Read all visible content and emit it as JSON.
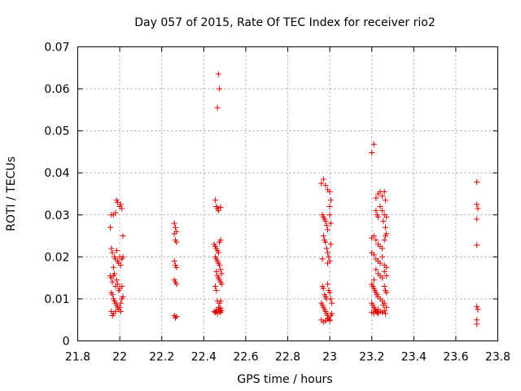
{
  "chart_data": {
    "type": "scatter",
    "title": "Day 057 of 2015, Rate Of TEC Index for receiver rio2",
    "xlabel": "GPS time / hours",
    "ylabel": "ROTI / TECUs",
    "xlim": [
      21.8,
      23.8
    ],
    "ylim": [
      0,
      0.07
    ],
    "xticks": [
      21.8,
      22,
      22.2,
      22.4,
      22.6,
      22.8,
      23,
      23.2,
      23.4,
      23.6,
      23.8
    ],
    "xtick_labels": [
      "21.8",
      "22",
      "22.2",
      "22.4",
      "22.6",
      "22.8",
      "23",
      "23.2",
      "23.4",
      "23.6",
      "23.8"
    ],
    "yticks": [
      0,
      0.01,
      0.02,
      0.03,
      0.04,
      0.05,
      0.06,
      0.07
    ],
    "ytick_labels": [
      "0",
      "0.01",
      "0.02",
      "0.03",
      "0.04",
      "0.05",
      "0.06",
      "0.07"
    ],
    "grid": true,
    "marker": "plus",
    "marker_color": "#e00000",
    "series": [
      {
        "name": "ROTI",
        "points": [
          [
            21.955,
            0.027
          ],
          [
            21.96,
            0.03
          ],
          [
            21.97,
            0.03
          ],
          [
            21.98,
            0.0305
          ],
          [
            21.985,
            0.0335
          ],
          [
            21.99,
            0.033
          ],
          [
            22.0,
            0.032
          ],
          [
            22.005,
            0.0325
          ],
          [
            22.01,
            0.0315
          ],
          [
            22.015,
            0.025
          ],
          [
            21.96,
            0.022
          ],
          [
            21.965,
            0.021
          ],
          [
            21.975,
            0.02
          ],
          [
            21.98,
            0.0195
          ],
          [
            21.985,
            0.0215
          ],
          [
            21.99,
            0.019
          ],
          [
            21.995,
            0.0185
          ],
          [
            22.0,
            0.02
          ],
          [
            22.005,
            0.018
          ],
          [
            22.01,
            0.0195
          ],
          [
            22.015,
            0.02
          ],
          [
            21.97,
            0.0175
          ],
          [
            21.975,
            0.016
          ],
          [
            21.955,
            0.0155
          ],
          [
            21.96,
            0.015
          ],
          [
            21.965,
            0.014
          ],
          [
            21.97,
            0.0155
          ],
          [
            21.98,
            0.013
          ],
          [
            21.985,
            0.0145
          ],
          [
            21.99,
            0.0135
          ],
          [
            21.995,
            0.012
          ],
          [
            22.0,
            0.0125
          ],
          [
            22.01,
            0.013
          ],
          [
            21.96,
            0.0115
          ],
          [
            21.965,
            0.011
          ],
          [
            21.97,
            0.01
          ],
          [
            21.975,
            0.0095
          ],
          [
            21.98,
            0.009
          ],
          [
            21.985,
            0.0085
          ],
          [
            21.99,
            0.008
          ],
          [
            21.995,
            0.0075
          ],
          [
            22.0,
            0.008
          ],
          [
            22.005,
            0.009
          ],
          [
            22.01,
            0.01
          ],
          [
            22.015,
            0.0105
          ],
          [
            21.96,
            0.007
          ],
          [
            21.965,
            0.006
          ],
          [
            21.97,
            0.0065
          ],
          [
            21.98,
            0.007
          ],
          [
            22.005,
            0.007
          ],
          [
            22.26,
            0.028
          ],
          [
            22.265,
            0.027
          ],
          [
            22.27,
            0.026
          ],
          [
            22.26,
            0.0255
          ],
          [
            22.265,
            0.024
          ],
          [
            22.27,
            0.0235
          ],
          [
            22.26,
            0.019
          ],
          [
            22.265,
            0.018
          ],
          [
            22.27,
            0.0175
          ],
          [
            22.26,
            0.0145
          ],
          [
            22.265,
            0.014
          ],
          [
            22.27,
            0.0135
          ],
          [
            22.26,
            0.006
          ],
          [
            22.265,
            0.0055
          ],
          [
            22.27,
            0.0058
          ],
          [
            22.47,
            0.0635
          ],
          [
            22.475,
            0.06
          ],
          [
            22.465,
            0.0555
          ],
          [
            22.455,
            0.0335
          ],
          [
            22.46,
            0.032
          ],
          [
            22.465,
            0.0315
          ],
          [
            22.47,
            0.031
          ],
          [
            22.48,
            0.0318
          ],
          [
            22.45,
            0.023
          ],
          [
            22.455,
            0.0225
          ],
          [
            22.46,
            0.022
          ],
          [
            22.465,
            0.0215
          ],
          [
            22.47,
            0.021
          ],
          [
            22.475,
            0.0235
          ],
          [
            22.48,
            0.024
          ],
          [
            22.455,
            0.02
          ],
          [
            22.46,
            0.0195
          ],
          [
            22.465,
            0.019
          ],
          [
            22.47,
            0.0185
          ],
          [
            22.475,
            0.018
          ],
          [
            22.48,
            0.017
          ],
          [
            22.485,
            0.016
          ],
          [
            22.46,
            0.0165
          ],
          [
            22.465,
            0.0155
          ],
          [
            22.47,
            0.015
          ],
          [
            22.475,
            0.0145
          ],
          [
            22.48,
            0.014
          ],
          [
            22.485,
            0.0135
          ],
          [
            22.455,
            0.013
          ],
          [
            22.46,
            0.012
          ],
          [
            22.465,
            0.0095
          ],
          [
            22.475,
            0.009
          ],
          [
            22.48,
            0.0095
          ],
          [
            22.45,
            0.007
          ],
          [
            22.455,
            0.0068
          ],
          [
            22.46,
            0.0072
          ],
          [
            22.465,
            0.0065
          ],
          [
            22.47,
            0.0075
          ],
          [
            22.475,
            0.007
          ],
          [
            22.48,
            0.0068
          ],
          [
            22.485,
            0.0072
          ],
          [
            22.47,
            0.008
          ],
          [
            22.48,
            0.0078
          ],
          [
            22.96,
            0.0375
          ],
          [
            22.97,
            0.0385
          ],
          [
            22.98,
            0.037
          ],
          [
            22.99,
            0.036
          ],
          [
            23.0,
            0.0355
          ],
          [
            23.005,
            0.0335
          ],
          [
            23.0,
            0.032
          ],
          [
            22.965,
            0.03
          ],
          [
            22.97,
            0.0295
          ],
          [
            22.975,
            0.029
          ],
          [
            22.98,
            0.0285
          ],
          [
            22.985,
            0.0275
          ],
          [
            22.99,
            0.0265
          ],
          [
            23.0,
            0.03
          ],
          [
            23.005,
            0.028
          ],
          [
            22.97,
            0.025
          ],
          [
            22.975,
            0.024
          ],
          [
            22.98,
            0.0235
          ],
          [
            22.985,
            0.022
          ],
          [
            22.99,
            0.021
          ],
          [
            22.995,
            0.02
          ],
          [
            23.0,
            0.019
          ],
          [
            23.005,
            0.023
          ],
          [
            22.965,
            0.0195
          ],
          [
            22.99,
            0.0185
          ],
          [
            22.965,
            0.013
          ],
          [
            22.97,
            0.0125
          ],
          [
            22.975,
            0.011
          ],
          [
            22.98,
            0.0105
          ],
          [
            22.985,
            0.01
          ],
          [
            22.99,
            0.0135
          ],
          [
            22.995,
            0.012
          ],
          [
            23.0,
            0.0115
          ],
          [
            23.005,
            0.01
          ],
          [
            23.01,
            0.009
          ],
          [
            22.96,
            0.009
          ],
          [
            22.965,
            0.0085
          ],
          [
            22.97,
            0.008
          ],
          [
            22.975,
            0.0075
          ],
          [
            22.98,
            0.007
          ],
          [
            22.985,
            0.0065
          ],
          [
            22.99,
            0.006
          ],
          [
            22.995,
            0.0055
          ],
          [
            23.0,
            0.005
          ],
          [
            23.005,
            0.006
          ],
          [
            22.96,
            0.005
          ],
          [
            22.97,
            0.0045
          ],
          [
            22.98,
            0.0048
          ],
          [
            22.99,
            0.0052
          ],
          [
            23.0,
            0.0048
          ],
          [
            23.01,
            0.0065
          ],
          [
            23.2,
            0.0448
          ],
          [
            23.21,
            0.0468
          ],
          [
            23.22,
            0.034
          ],
          [
            23.23,
            0.035
          ],
          [
            23.24,
            0.0355
          ],
          [
            23.25,
            0.0345
          ],
          [
            23.26,
            0.0355
          ],
          [
            23.265,
            0.0335
          ],
          [
            23.22,
            0.031
          ],
          [
            23.225,
            0.03
          ],
          [
            23.23,
            0.0295
          ],
          [
            23.24,
            0.032
          ],
          [
            23.25,
            0.031
          ],
          [
            23.26,
            0.03
          ],
          [
            23.27,
            0.0295
          ],
          [
            23.255,
            0.0285
          ],
          [
            23.265,
            0.027
          ],
          [
            23.21,
            0.025
          ],
          [
            23.22,
            0.024
          ],
          [
            23.23,
            0.023
          ],
          [
            23.24,
            0.0225
          ],
          [
            23.25,
            0.022
          ],
          [
            23.26,
            0.024
          ],
          [
            23.265,
            0.025
          ],
          [
            23.27,
            0.0255
          ],
          [
            23.2,
            0.0245
          ],
          [
            23.2,
            0.021
          ],
          [
            23.21,
            0.0205
          ],
          [
            23.22,
            0.0195
          ],
          [
            23.23,
            0.019
          ],
          [
            23.24,
            0.0185
          ],
          [
            23.25,
            0.02
          ],
          [
            23.26,
            0.018
          ],
          [
            23.27,
            0.0175
          ],
          [
            23.22,
            0.017
          ],
          [
            23.23,
            0.016
          ],
          [
            23.24,
            0.0155
          ],
          [
            23.25,
            0.015
          ],
          [
            23.26,
            0.0165
          ],
          [
            23.27,
            0.0155
          ],
          [
            23.21,
            0.0145
          ],
          [
            23.2,
            0.0135
          ],
          [
            23.205,
            0.013
          ],
          [
            23.21,
            0.0125
          ],
          [
            23.215,
            0.012
          ],
          [
            23.22,
            0.0115
          ],
          [
            23.225,
            0.011
          ],
          [
            23.23,
            0.0105
          ],
          [
            23.24,
            0.01
          ],
          [
            23.25,
            0.0095
          ],
          [
            23.26,
            0.013
          ],
          [
            23.265,
            0.012
          ],
          [
            23.27,
            0.0115
          ],
          [
            23.2,
            0.009
          ],
          [
            23.205,
            0.0085
          ],
          [
            23.21,
            0.008
          ],
          [
            23.215,
            0.0075
          ],
          [
            23.22,
            0.007
          ],
          [
            23.225,
            0.0068
          ],
          [
            23.23,
            0.0065
          ],
          [
            23.24,
            0.007
          ],
          [
            23.25,
            0.0068
          ],
          [
            23.26,
            0.0072
          ],
          [
            23.265,
            0.0065
          ],
          [
            23.27,
            0.008
          ],
          [
            23.2,
            0.0068
          ],
          [
            23.21,
            0.0065
          ],
          [
            23.22,
            0.0072
          ],
          [
            23.23,
            0.0075
          ],
          [
            23.255,
            0.0085
          ],
          [
            23.26,
            0.009
          ],
          [
            23.7,
            0.0378
          ],
          [
            23.7,
            0.0325
          ],
          [
            23.705,
            0.0315
          ],
          [
            23.7,
            0.029
          ],
          [
            23.7,
            0.0228
          ],
          [
            23.7,
            0.0082
          ],
          [
            23.705,
            0.0075
          ],
          [
            23.7,
            0.005
          ],
          [
            23.7,
            0.004
          ]
        ]
      }
    ]
  }
}
